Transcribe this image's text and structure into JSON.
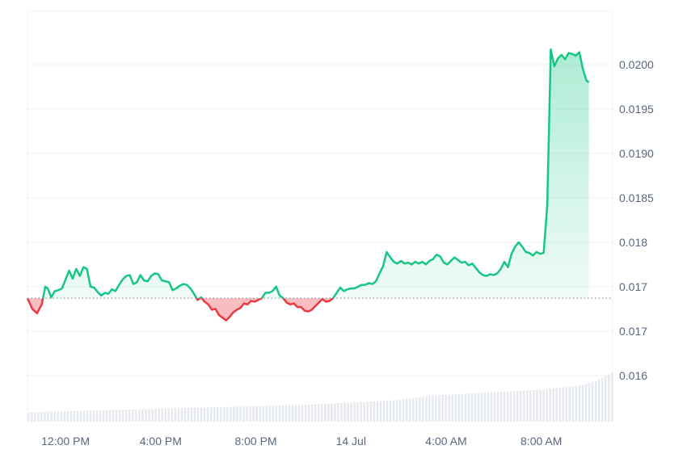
{
  "chart_data": {
    "type": "area",
    "title": "",
    "xlabel": "",
    "ylabel": "",
    "baseline": 0.01737,
    "y_tick_labels": [
      "0.0200",
      "0.0195",
      "0.0190",
      "0.0185",
      "0.018",
      "0.017",
      "0.017",
      "0.016"
    ],
    "y_tick_values": [
      0.02,
      0.0195,
      0.019,
      0.0185,
      0.018,
      0.0175,
      0.017,
      0.0165
    ],
    "x_tick_labels": [
      "12:00 PM",
      "4:00 PM",
      "8:00 PM",
      "14 Jul",
      "4:00 AM",
      "8:00 AM"
    ],
    "x_tick_values": [
      0,
      4,
      8,
      12,
      16,
      20
    ],
    "xlim": [
      -1.6,
      23.0
    ],
    "ylim": [
      0.01598,
      0.0206
    ],
    "grid": true,
    "colors": {
      "up": "#16c784",
      "down": "#ea3943",
      "grid": "#eff2f5",
      "volume": "#e6e9ee",
      "axis_text": "#58667e",
      "baseline": "#8a939f"
    },
    "series": [
      {
        "values": [
          [
            -1.6,
            0.01737
          ],
          [
            -1.4,
            0.01725
          ],
          [
            -1.2,
            0.0172
          ],
          [
            -1.0,
            0.0173
          ],
          [
            -0.85,
            0.0175
          ],
          [
            -0.75,
            0.01748
          ],
          [
            -0.6,
            0.01738
          ],
          [
            -0.45,
            0.01745
          ],
          [
            -0.3,
            0.01746
          ],
          [
            -0.15,
            0.01748
          ],
          [
            0.0,
            0.01758
          ],
          [
            0.15,
            0.01768
          ],
          [
            0.3,
            0.01759
          ],
          [
            0.45,
            0.0177
          ],
          [
            0.6,
            0.01762
          ],
          [
            0.75,
            0.01772
          ],
          [
            0.9,
            0.0177
          ],
          [
            1.05,
            0.0175
          ],
          [
            1.2,
            0.01749
          ],
          [
            1.35,
            0.01744
          ],
          [
            1.5,
            0.0174
          ],
          [
            1.65,
            0.01743
          ],
          [
            1.8,
            0.01742
          ],
          [
            1.95,
            0.01747
          ],
          [
            2.1,
            0.01745
          ],
          [
            2.25,
            0.01752
          ],
          [
            2.4,
            0.01758
          ],
          [
            2.55,
            0.01762
          ],
          [
            2.7,
            0.01763
          ],
          [
            2.85,
            0.01753
          ],
          [
            3.0,
            0.01755
          ],
          [
            3.15,
            0.01763
          ],
          [
            3.3,
            0.01757
          ],
          [
            3.45,
            0.01756
          ],
          [
            3.6,
            0.01762
          ],
          [
            3.75,
            0.01765
          ],
          [
            3.9,
            0.01764
          ],
          [
            4.05,
            0.01757
          ],
          [
            4.2,
            0.01756
          ],
          [
            4.35,
            0.01755
          ],
          [
            4.5,
            0.01746
          ],
          [
            4.65,
            0.01748
          ],
          [
            4.8,
            0.01751
          ],
          [
            4.95,
            0.01753
          ],
          [
            5.1,
            0.01752
          ],
          [
            5.25,
            0.01748
          ],
          [
            5.4,
            0.01742
          ],
          [
            5.55,
            0.01735
          ],
          [
            5.7,
            0.01738
          ],
          [
            5.85,
            0.01733
          ],
          [
            6.0,
            0.0173
          ],
          [
            6.15,
            0.01724
          ],
          [
            6.3,
            0.01725
          ],
          [
            6.45,
            0.01718
          ],
          [
            6.6,
            0.01715
          ],
          [
            6.75,
            0.01712
          ],
          [
            6.9,
            0.01716
          ],
          [
            7.05,
            0.01721
          ],
          [
            7.2,
            0.01724
          ],
          [
            7.35,
            0.01726
          ],
          [
            7.5,
            0.01731
          ],
          [
            7.65,
            0.0173
          ],
          [
            7.8,
            0.01734
          ],
          [
            7.95,
            0.01733
          ],
          [
            8.1,
            0.01735
          ],
          [
            8.25,
            0.01737
          ],
          [
            8.4,
            0.01743
          ],
          [
            8.55,
            0.01743
          ],
          [
            8.7,
            0.01745
          ],
          [
            8.85,
            0.0175
          ],
          [
            9.0,
            0.0174
          ],
          [
            9.15,
            0.01737
          ],
          [
            9.3,
            0.01732
          ],
          [
            9.45,
            0.0173
          ],
          [
            9.6,
            0.01731
          ],
          [
            9.75,
            0.01727
          ],
          [
            9.9,
            0.01727
          ],
          [
            10.05,
            0.01723
          ],
          [
            10.2,
            0.01722
          ],
          [
            10.35,
            0.01724
          ],
          [
            10.5,
            0.01728
          ],
          [
            10.65,
            0.01732
          ],
          [
            10.8,
            0.01736
          ],
          [
            10.95,
            0.01733
          ],
          [
            11.1,
            0.01734
          ],
          [
            11.25,
            0.01737
          ],
          [
            11.4,
            0.01743
          ],
          [
            11.55,
            0.01749
          ],
          [
            11.7,
            0.01745
          ],
          [
            11.85,
            0.01747
          ],
          [
            12.0,
            0.01748
          ],
          [
            12.15,
            0.01748
          ],
          [
            12.3,
            0.0175
          ],
          [
            12.45,
            0.01752
          ],
          [
            12.6,
            0.01752
          ],
          [
            12.75,
            0.01754
          ],
          [
            12.9,
            0.01753
          ],
          [
            13.05,
            0.01756
          ],
          [
            13.2,
            0.01765
          ],
          [
            13.35,
            0.01773
          ],
          [
            13.5,
            0.01789
          ],
          [
            13.65,
            0.01783
          ],
          [
            13.8,
            0.01778
          ],
          [
            13.95,
            0.01776
          ],
          [
            14.1,
            0.01779
          ],
          [
            14.25,
            0.01776
          ],
          [
            14.4,
            0.01777
          ],
          [
            14.55,
            0.01775
          ],
          [
            14.7,
            0.01778
          ],
          [
            14.85,
            0.01776
          ],
          [
            15.0,
            0.01778
          ],
          [
            15.15,
            0.01775
          ],
          [
            15.3,
            0.01779
          ],
          [
            15.45,
            0.01781
          ],
          [
            15.6,
            0.01786
          ],
          [
            15.75,
            0.01784
          ],
          [
            15.9,
            0.01777
          ],
          [
            16.05,
            0.01775
          ],
          [
            16.2,
            0.01779
          ],
          [
            16.35,
            0.01783
          ],
          [
            16.5,
            0.0178
          ],
          [
            16.65,
            0.01777
          ],
          [
            16.8,
            0.01778
          ],
          [
            16.95,
            0.01774
          ],
          [
            17.1,
            0.01776
          ],
          [
            17.25,
            0.01771
          ],
          [
            17.4,
            0.01766
          ],
          [
            17.55,
            0.01763
          ],
          [
            17.7,
            0.01762
          ],
          [
            17.85,
            0.01764
          ],
          [
            18.0,
            0.01763
          ],
          [
            18.15,
            0.01765
          ],
          [
            18.3,
            0.0177
          ],
          [
            18.45,
            0.01778
          ],
          [
            18.6,
            0.01772
          ],
          [
            18.75,
            0.01787
          ],
          [
            18.9,
            0.01795
          ],
          [
            19.05,
            0.018
          ],
          [
            19.2,
            0.01795
          ],
          [
            19.35,
            0.01789
          ],
          [
            19.5,
            0.01788
          ],
          [
            19.65,
            0.01785
          ],
          [
            19.8,
            0.01789
          ],
          [
            19.95,
            0.01787
          ],
          [
            20.1,
            0.01788
          ],
          [
            20.25,
            0.01841
          ],
          [
            20.4,
            0.02017
          ],
          [
            20.55,
            0.01998
          ],
          [
            20.7,
            0.02007
          ],
          [
            20.85,
            0.02011
          ],
          [
            21.0,
            0.02006
          ],
          [
            21.15,
            0.02013
          ],
          [
            21.3,
            0.02012
          ],
          [
            21.45,
            0.0201
          ],
          [
            21.6,
            0.02014
          ],
          [
            21.75,
            0.01995
          ],
          [
            21.9,
            0.01982
          ],
          [
            22.0,
            0.0198
          ]
        ]
      }
    ],
    "volume": {
      "values": [
        0.02,
        0.022,
        0.023,
        0.024,
        0.025,
        0.026,
        0.027,
        0.028,
        0.029,
        0.03,
        0.031,
        0.032,
        0.033,
        0.034,
        0.035,
        0.036,
        0.037,
        0.038,
        0.04,
        0.042,
        0.044,
        0.046,
        0.048,
        0.052,
        0.058,
        0.06,
        0.062,
        0.064,
        0.066,
        0.068,
        0.07,
        0.072,
        0.076,
        0.08,
        0.09,
        0.11
      ],
      "scale_top_fraction": 0.12
    }
  }
}
